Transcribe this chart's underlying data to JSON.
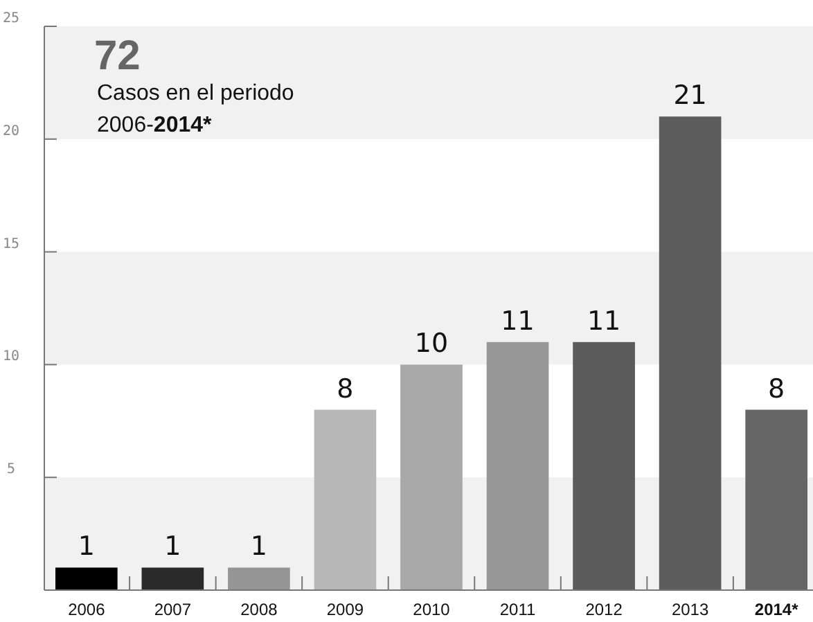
{
  "chart_data": {
    "type": "bar",
    "title": "72",
    "subtitle": "Casos en el periodo\n2006-2014*",
    "categories": [
      "2006",
      "2007",
      "2008",
      "2009",
      "2010",
      "2011",
      "2012",
      "2013",
      "2014*"
    ],
    "values": [
      1,
      1,
      1,
      8,
      10,
      11,
      11,
      21,
      8
    ],
    "colors": [
      "#000000",
      "#2a2a2a",
      "#959595",
      "#b8b8b8",
      "#a9a9a9",
      "#979797",
      "#5b5b5b",
      "#5d5d5d",
      "#666666"
    ],
    "ylim": [
      0,
      25
    ],
    "yticks": [
      5,
      10,
      15,
      20,
      25
    ],
    "grid": false,
    "data_labels": true,
    "bands": [
      {
        "axis": "y",
        "from": 0,
        "to": 5,
        "color": "#f1f1f1"
      },
      {
        "axis": "y",
        "from": 10,
        "to": 15,
        "color": "#f1f1f1"
      },
      {
        "axis": "y",
        "from": 20,
        "to": 25,
        "color": "#f1f1f1"
      }
    ]
  }
}
